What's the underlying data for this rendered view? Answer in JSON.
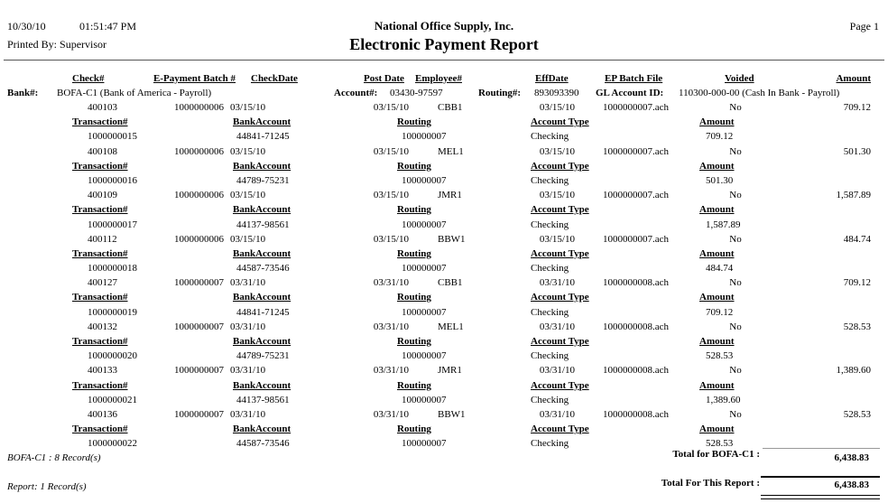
{
  "report": {
    "print_date": "10/30/10",
    "print_time": "01:51:47 PM",
    "printed_by_label": "Printed By:",
    "printed_by": "Supervisor",
    "company": "National Office Supply, Inc.",
    "title": "Electronic Payment Report",
    "page": "Page 1"
  },
  "columns": {
    "check": "Check#",
    "batch": "E-Payment Batch #",
    "check_date": "CheckDate",
    "post_date": "Post Date",
    "employee": "Employee#",
    "eff_date": "EffDate",
    "ep_batch_file": "EP Batch File",
    "voided": "Voided",
    "amount": "Amount"
  },
  "detail_columns": {
    "transaction": "Transaction#",
    "bank_account": "BankAccount",
    "routing": "Routing",
    "account_type": "Account Type",
    "amount": "Amount"
  },
  "bank": {
    "label": "Bank#:",
    "name": "BOFA-C1 (Bank of America - Payroll)",
    "account_label": "Account#:",
    "account": "03430-97597",
    "routing_label": "Routing#:",
    "routing": "893093390",
    "gl_label": "GL Account ID:",
    "gl": "110300-000-00 (Cash In Bank - Payroll)"
  },
  "records": [
    {
      "check_no": "400103",
      "batch_no": "1000000006",
      "check_date": "03/15/10",
      "post_date": "03/15/10",
      "employee": "CBB1",
      "eff_date": "03/15/10",
      "ep_batch_file": "1000000007.ach",
      "voided": "No",
      "amount": "709.12",
      "transaction_no": "1000000015",
      "bank_account": "44841-71245",
      "routing": "100000007",
      "account_type": "Checking",
      "detail_amount": "709.12"
    },
    {
      "check_no": "400108",
      "batch_no": "1000000006",
      "check_date": "03/15/10",
      "post_date": "03/15/10",
      "employee": "MEL1",
      "eff_date": "03/15/10",
      "ep_batch_file": "1000000007.ach",
      "voided": "No",
      "amount": "501.30",
      "transaction_no": "1000000016",
      "bank_account": "44789-75231",
      "routing": "100000007",
      "account_type": "Checking",
      "detail_amount": "501.30"
    },
    {
      "check_no": "400109",
      "batch_no": "1000000006",
      "check_date": "03/15/10",
      "post_date": "03/15/10",
      "employee": "JMR1",
      "eff_date": "03/15/10",
      "ep_batch_file": "1000000007.ach",
      "voided": "No",
      "amount": "1,587.89",
      "transaction_no": "1000000017",
      "bank_account": "44137-98561",
      "routing": "100000007",
      "account_type": "Checking",
      "detail_amount": "1,587.89"
    },
    {
      "check_no": "400112",
      "batch_no": "1000000006",
      "check_date": "03/15/10",
      "post_date": "03/15/10",
      "employee": "BBW1",
      "eff_date": "03/15/10",
      "ep_batch_file": "1000000007.ach",
      "voided": "No",
      "amount": "484.74",
      "transaction_no": "1000000018",
      "bank_account": "44587-73546",
      "routing": "100000007",
      "account_type": "Checking",
      "detail_amount": "484.74"
    },
    {
      "check_no": "400127",
      "batch_no": "1000000007",
      "check_date": "03/31/10",
      "post_date": "03/31/10",
      "employee": "CBB1",
      "eff_date": "03/31/10",
      "ep_batch_file": "1000000008.ach",
      "voided": "No",
      "amount": "709.12",
      "transaction_no": "1000000019",
      "bank_account": "44841-71245",
      "routing": "100000007",
      "account_type": "Checking",
      "detail_amount": "709.12"
    },
    {
      "check_no": "400132",
      "batch_no": "1000000007",
      "check_date": "03/31/10",
      "post_date": "03/31/10",
      "employee": "MEL1",
      "eff_date": "03/31/10",
      "ep_batch_file": "1000000008.ach",
      "voided": "No",
      "amount": "528.53",
      "transaction_no": "1000000020",
      "bank_account": "44789-75231",
      "routing": "100000007",
      "account_type": "Checking",
      "detail_amount": "528.53"
    },
    {
      "check_no": "400133",
      "batch_no": "1000000007",
      "check_date": "03/31/10",
      "post_date": "03/31/10",
      "employee": "JMR1",
      "eff_date": "03/31/10",
      "ep_batch_file": "1000000008.ach",
      "voided": "No",
      "amount": "1,389.60",
      "transaction_no": "1000000021",
      "bank_account": "44137-98561",
      "routing": "100000007",
      "account_type": "Checking",
      "detail_amount": "1,389.60"
    },
    {
      "check_no": "400136",
      "batch_no": "1000000007",
      "check_date": "03/31/10",
      "post_date": "03/31/10",
      "employee": "BBW1",
      "eff_date": "03/31/10",
      "ep_batch_file": "1000000008.ach",
      "voided": "No",
      "amount": "528.53",
      "transaction_no": "1000000022",
      "bank_account": "44587-73546",
      "routing": "100000007",
      "account_type": "Checking",
      "detail_amount": "528.53"
    }
  ],
  "totals": {
    "bank_records_note": "BOFA-C1 : 8 Record(s)",
    "bank_total_label": "Total for BOFA-C1 :",
    "bank_total": "6,438.83",
    "report_records_note": "Report: 1 Record(s)",
    "report_total_label": "Total For This Report :",
    "report_total": "6,438.83"
  }
}
